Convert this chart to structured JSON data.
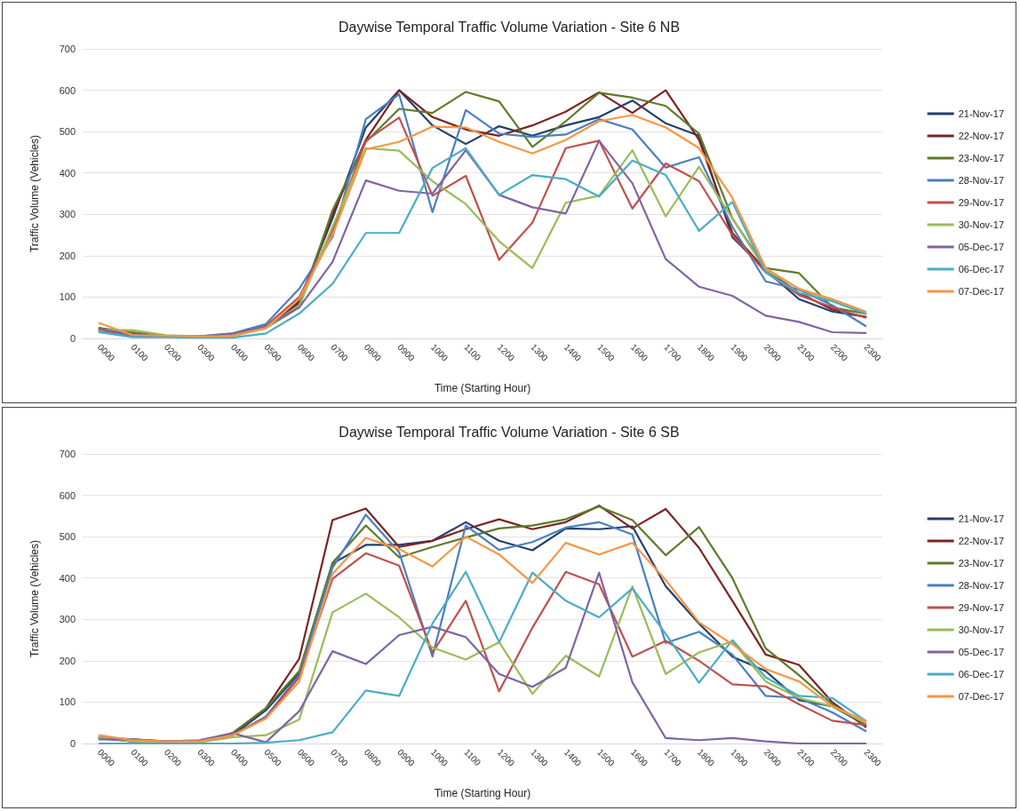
{
  "chart_data": [
    {
      "type": "line",
      "title": "Daywise Temporal Traffic Volume Variation - Site 6 NB",
      "xlabel": "Time (Starting Hour)",
      "ylabel": "Traffic Volume (Vehicles)",
      "categories": [
        "0000",
        "0100",
        "0200",
        "0300",
        "0400",
        "0500",
        "0600",
        "0700",
        "0800",
        "0900",
        "1000",
        "1100",
        "1200",
        "1300",
        "1400",
        "1500",
        "1600",
        "1700",
        "1800",
        "1900",
        "2000",
        "2100",
        "2200",
        "2300"
      ],
      "ylim": [
        0,
        700
      ],
      "yticks": [
        0,
        100,
        200,
        300,
        400,
        500,
        600,
        700
      ],
      "grid": "y",
      "legend": "right",
      "marker": "none",
      "line_style": "solid",
      "series": [
        {
          "name": "21-Nov-17",
          "color": "#243f6b",
          "values": [
            25,
            10,
            5,
            5,
            8,
            30,
            90,
            290,
            510,
            600,
            515,
            470,
            513,
            490,
            515,
            535,
            575,
            520,
            490,
            245,
            165,
            95,
            65,
            52
          ]
        },
        {
          "name": "22-Nov-17",
          "color": "#7b2424",
          "values": [
            20,
            10,
            5,
            5,
            8,
            30,
            85,
            300,
            480,
            600,
            535,
            505,
            490,
            515,
            548,
            595,
            545,
            600,
            480,
            255,
            165,
            110,
            70,
            52
          ]
        },
        {
          "name": "23-Nov-17",
          "color": "#5e7a2a",
          "values": [
            25,
            15,
            5,
            5,
            8,
            25,
            75,
            310,
            475,
            555,
            545,
            596,
            573,
            463,
            525,
            594,
            582,
            562,
            495,
            290,
            170,
            158,
            75,
            60
          ]
        },
        {
          "name": "28-Nov-17",
          "color": "#4a7fc1",
          "values": [
            15,
            5,
            5,
            5,
            12,
            35,
            120,
            245,
            530,
            590,
            305,
            552,
            495,
            487,
            493,
            530,
            505,
            413,
            438,
            270,
            138,
            118,
            80,
            30
          ]
        },
        {
          "name": "29-Nov-17",
          "color": "#c0504d",
          "values": [
            20,
            10,
            5,
            5,
            8,
            30,
            100,
            260,
            478,
            534,
            345,
            393,
            190,
            280,
            460,
            478,
            314,
            423,
            380,
            250,
            160,
            105,
            75,
            50
          ]
        },
        {
          "name": "30-Nov-17",
          "color": "#9bbb59",
          "values": [
            20,
            20,
            8,
            5,
            8,
            25,
            80,
            270,
            460,
            454,
            380,
            325,
            235,
            170,
            328,
            345,
            455,
            295,
            415,
            290,
            165,
            120,
            90,
            60
          ]
        },
        {
          "name": "05-Dec-17",
          "color": "#8064a2",
          "values": [
            22,
            10,
            5,
            5,
            12,
            30,
            75,
            185,
            382,
            357,
            350,
            455,
            347,
            317,
            302,
            478,
            375,
            192,
            125,
            103,
            55,
            40,
            15,
            13
          ]
        },
        {
          "name": "06-Dec-17",
          "color": "#4bacc6",
          "values": [
            15,
            3,
            3,
            2,
            2,
            12,
            60,
            132,
            255,
            255,
            412,
            460,
            347,
            395,
            385,
            343,
            430,
            395,
            260,
            330,
            160,
            110,
            90,
            60
          ]
        },
        {
          "name": "07-Dec-17",
          "color": "#f79646",
          "values": [
            37,
            8,
            7,
            5,
            5,
            25,
            95,
            250,
            457,
            475,
            512,
            510,
            475,
            447,
            480,
            525,
            540,
            510,
            460,
            340,
            170,
            120,
            95,
            65
          ]
        }
      ]
    },
    {
      "type": "line",
      "title": "Daywise Temporal Traffic Volume Variation - Site 6 SB",
      "xlabel": "Time (Starting Hour)",
      "ylabel": "Traffic Volume (Vehicles)",
      "categories": [
        "0000",
        "0100",
        "0200",
        "0300",
        "0400",
        "0500",
        "0600",
        "0700",
        "0800",
        "0900",
        "1000",
        "1100",
        "1200",
        "1300",
        "1400",
        "1500",
        "1600",
        "1700",
        "1800",
        "1900",
        "2000",
        "2100",
        "2200",
        "2300"
      ],
      "ylim": [
        0,
        700
      ],
      "yticks": [
        0,
        100,
        200,
        300,
        400,
        500,
        600,
        700
      ],
      "grid": "y",
      "legend": "right",
      "marker": "none",
      "line_style": "solid",
      "series": [
        {
          "name": "21-Nov-17",
          "color": "#243f6b",
          "values": [
            15,
            5,
            5,
            5,
            20,
            80,
            170,
            435,
            480,
            480,
            490,
            535,
            490,
            467,
            520,
            518,
            525,
            380,
            290,
            210,
            175,
            105,
            90,
            45
          ]
        },
        {
          "name": "22-Nov-17",
          "color": "#7b2424",
          "values": [
            15,
            10,
            5,
            5,
            25,
            85,
            205,
            540,
            568,
            475,
            490,
            518,
            542,
            518,
            535,
            575,
            520,
            567,
            473,
            345,
            215,
            190,
            100,
            40
          ]
        },
        {
          "name": "23-Nov-17",
          "color": "#5e7a2a",
          "values": [
            15,
            8,
            5,
            5,
            25,
            85,
            175,
            437,
            527,
            450,
            475,
            498,
            520,
            527,
            542,
            573,
            540,
            455,
            523,
            400,
            230,
            165,
            95,
            45
          ]
        },
        {
          "name": "28-Nov-17",
          "color": "#4a7fc1",
          "values": [
            12,
            5,
            5,
            5,
            20,
            65,
            165,
            425,
            553,
            462,
            210,
            527,
            468,
            487,
            522,
            535,
            505,
            243,
            270,
            215,
            115,
            110,
            75,
            30
          ]
        },
        {
          "name": "29-Nov-17",
          "color": "#c0504d",
          "values": [
            15,
            5,
            5,
            5,
            20,
            62,
            160,
            398,
            460,
            430,
            220,
            345,
            126,
            280,
            415,
            385,
            210,
            248,
            200,
            143,
            138,
            95,
            55,
            45
          ]
        },
        {
          "name": "30-Nov-17",
          "color": "#9bbb59",
          "values": [
            15,
            5,
            3,
            3,
            15,
            20,
            58,
            317,
            362,
            305,
            232,
            203,
            245,
            120,
            212,
            162,
            380,
            168,
            220,
            247,
            150,
            110,
            90,
            50
          ]
        },
        {
          "name": "05-Dec-17",
          "color": "#8064a2",
          "values": [
            10,
            10,
            5,
            8,
            25,
            3,
            78,
            223,
            192,
            262,
            282,
            257,
            168,
            137,
            183,
            413,
            148,
            13,
            8,
            13,
            5,
            0,
            0,
            0
          ]
        },
        {
          "name": "06-Dec-17",
          "color": "#4bacc6",
          "values": [
            0,
            0,
            0,
            0,
            0,
            2,
            8,
            27,
            128,
            115,
            290,
            415,
            245,
            413,
            345,
            305,
            375,
            265,
            147,
            250,
            160,
            115,
            110,
            55
          ]
        },
        {
          "name": "07-Dec-17",
          "color": "#f79646",
          "values": [
            20,
            8,
            5,
            5,
            20,
            60,
            150,
            410,
            497,
            470,
            428,
            500,
            457,
            388,
            485,
            457,
            485,
            395,
            293,
            240,
            180,
            150,
            90,
            55
          ]
        }
      ]
    }
  ]
}
